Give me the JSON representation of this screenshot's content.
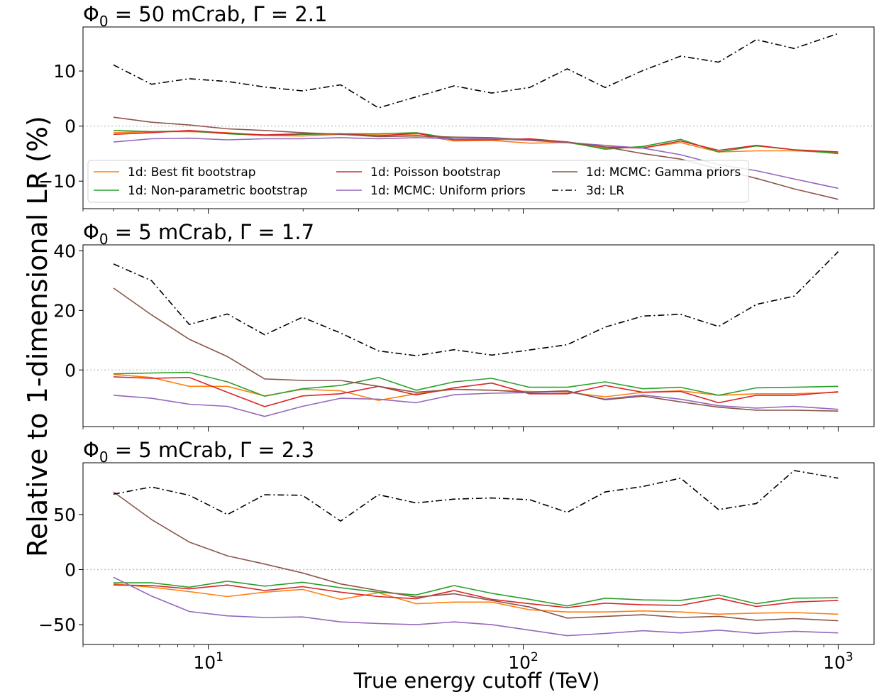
{
  "figure": {
    "ylabel": "Relative to 1-dimensional LR (%)",
    "xlabel": "True energy cutoff (TeV)",
    "xticks": [
      {
        "value": 10,
        "base": "10",
        "exp": "1"
      },
      {
        "value": 100,
        "base": "10",
        "exp": "2"
      },
      {
        "value": 1000,
        "base": "10",
        "exp": "3"
      }
    ]
  },
  "legend": {
    "placement": "bottom of first panel",
    "entries": [
      {
        "label": "1d: Best fit bootstrap",
        "color": "#ff7f0e",
        "dash": "solid"
      },
      {
        "label": "1d: Poisson bootstrap",
        "color": "#d62728",
        "dash": "solid"
      },
      {
        "label": "1d: MCMC: Gamma priors",
        "color": "#8c564b",
        "dash": "solid"
      },
      {
        "label": "1d: Non-parametric bootstrap",
        "color": "#2ca02c",
        "dash": "solid"
      },
      {
        "label": "1d: MCMC: Uniform priors",
        "color": "#9467bd",
        "dash": "solid"
      },
      {
        "label": "3d: LR",
        "color": "#000000",
        "dash": "dashdot"
      }
    ]
  },
  "chart_data": [
    {
      "type": "line",
      "title": {
        "phi": "Φ",
        "sub": "0",
        "rest": " = 50 mCrab, Γ = 2.1"
      },
      "xscale": "log",
      "xlim": [
        4,
        1300
      ],
      "ylim": [
        -15,
        18
      ],
      "yticks": [
        10,
        0,
        -10
      ],
      "zero_line": true,
      "x": [
        5,
        6.6,
        8.7,
        11.5,
        15.1,
        19.9,
        26.3,
        34.7,
        45.7,
        60.3,
        79.4,
        104.7,
        138,
        182,
        240,
        316,
        417,
        550,
        725,
        1000
      ],
      "series": [
        {
          "name": "1d: Best fit bootstrap",
          "values": [
            -1.2,
            -1.0,
            -1.0,
            -1.2,
            -1.7,
            -1.8,
            -1.5,
            -1.6,
            -1.6,
            -2.7,
            -2.6,
            -3.1,
            -3.0,
            -4.0,
            -3.9,
            -3.0,
            -4.7,
            -4.5,
            -4.5,
            -4.8
          ]
        },
        {
          "name": "1d: Non-parametric bootstrap",
          "values": [
            -0.8,
            -1.0,
            -0.9,
            -1.4,
            -1.7,
            -1.5,
            -1.4,
            -1.4,
            -1.2,
            -2.3,
            -2.3,
            -2.4,
            -2.9,
            -4.2,
            -3.7,
            -2.4,
            -4.7,
            -3.6,
            -4.3,
            -5.0
          ]
        },
        {
          "name": "1d: Poisson bootstrap",
          "values": [
            -1.5,
            -1.2,
            -0.8,
            -1.3,
            -1.6,
            -1.4,
            -1.4,
            -1.8,
            -1.3,
            -2.5,
            -2.5,
            -2.3,
            -2.9,
            -3.8,
            -4.0,
            -2.7,
            -4.4,
            -3.5,
            -4.3,
            -4.7
          ]
        },
        {
          "name": "1d: MCMC: Uniform priors",
          "values": [
            -2.9,
            -2.3,
            -2.2,
            -2.5,
            -2.3,
            -2.3,
            -2.1,
            -2.3,
            -2.1,
            -2.3,
            -2.3,
            -2.6,
            -3.0,
            -3.5,
            -4.0,
            -5.2,
            -7.0,
            -8.1,
            -9.6,
            -11.3
          ]
        },
        {
          "name": "1d: MCMC: Gamma priors",
          "values": [
            1.6,
            0.7,
            0.2,
            -0.5,
            -0.8,
            -1.2,
            -1.5,
            -1.9,
            -1.8,
            -2.0,
            -2.1,
            -2.5,
            -2.9,
            -3.8,
            -5.0,
            -6.0,
            -7.8,
            -9.5,
            -11.4,
            -13.3
          ]
        },
        {
          "name": "3d: LR",
          "values": [
            11.1,
            7.6,
            8.6,
            8.1,
            7.1,
            6.4,
            7.5,
            3.3,
            5.3,
            7.3,
            6.0,
            7.0,
            10.4,
            7.0,
            10.1,
            12.7,
            11.6,
            15.7,
            14.1,
            16.8
          ]
        }
      ]
    },
    {
      "type": "line",
      "title": {
        "phi": "Φ",
        "sub": "0",
        "rest": " = 5 mCrab, Γ = 1.7"
      },
      "xscale": "log",
      "xlim": [
        4,
        1300
      ],
      "ylim": [
        -19,
        42
      ],
      "yticks": [
        40,
        20,
        0
      ],
      "zero_line": true,
      "x": [
        5,
        6.6,
        8.7,
        11.5,
        15.1,
        19.9,
        26.3,
        34.7,
        45.7,
        60.3,
        79.4,
        104.7,
        138,
        182,
        240,
        316,
        417,
        550,
        725,
        1000
      ],
      "series": [
        {
          "name": "1d: Best fit bootstrap",
          "values": [
            -1.5,
            -2.5,
            -5.5,
            -5.5,
            -8.7,
            -6.5,
            -7.0,
            -10.2,
            -8.0,
            -6.5,
            -6.8,
            -7.2,
            -7.5,
            -9.0,
            -7.5,
            -7.0,
            -8.5,
            -8.0,
            -8.0,
            -7.5
          ]
        },
        {
          "name": "1d: Non-parametric bootstrap",
          "values": [
            -1.3,
            -1.0,
            -0.8,
            -4.0,
            -8.8,
            -6.3,
            -5.2,
            -2.5,
            -6.8,
            -4.0,
            -2.8,
            -5.8,
            -5.8,
            -4.0,
            -6.3,
            -5.8,
            -8.5,
            -6.0,
            -5.8,
            -5.5
          ]
        },
        {
          "name": "1d: Poisson bootstrap",
          "values": [
            -2.3,
            -2.8,
            -2.5,
            -7.5,
            -12.3,
            -8.7,
            -8.0,
            -5.5,
            -8.4,
            -6.0,
            -4.4,
            -8.0,
            -8.0,
            -5.2,
            -7.5,
            -7.2,
            -11.0,
            -8.5,
            -8.5,
            -7.3
          ]
        },
        {
          "name": "1d: MCMC: Uniform priors",
          "values": [
            -8.5,
            -9.5,
            -11.5,
            -12.2,
            -15.6,
            -12.2,
            -9.5,
            -9.8,
            -11.0,
            -8.3,
            -7.8,
            -7.6,
            -7.2,
            -9.8,
            -8.4,
            -9.8,
            -12.0,
            -12.8,
            -12.2,
            -13.2
          ]
        },
        {
          "name": "1d: MCMC: Gamma priors",
          "values": [
            27.5,
            18.5,
            10.3,
            4.5,
            -3.0,
            -3.5,
            -3.5,
            -5.5,
            -7.5,
            -6.5,
            -6.8,
            -7.5,
            -7.0,
            -10.0,
            -8.8,
            -10.7,
            -12.5,
            -13.5,
            -13.5,
            -13.8
          ]
        },
        {
          "name": "3d: LR",
          "values": [
            35.6,
            30.0,
            15.3,
            18.8,
            11.8,
            17.7,
            12.4,
            6.4,
            4.8,
            6.8,
            5.0,
            6.7,
            8.5,
            14.4,
            18.1,
            18.7,
            14.6,
            22.0,
            24.8,
            39.7
          ]
        }
      ]
    },
    {
      "type": "line",
      "title": {
        "phi": "Φ",
        "sub": "0",
        "rest": " = 5 mCrab, Γ = 2.3"
      },
      "xscale": "log",
      "xlim": [
        4,
        1300
      ],
      "ylim": [
        -68,
        97
      ],
      "yticks": [
        50,
        0,
        -50
      ],
      "zero_line": true,
      "x": [
        5,
        6.6,
        8.7,
        11.5,
        15.1,
        19.9,
        26.3,
        34.7,
        45.7,
        60.3,
        79.4,
        104.7,
        138,
        182,
        240,
        316,
        417,
        550,
        725,
        1000
      ],
      "series": [
        {
          "name": "1d: Best fit bootstrap",
          "values": [
            -13.0,
            -16.0,
            -20.0,
            -24.5,
            -20.5,
            -18.0,
            -27.0,
            -21.0,
            -31.0,
            -29.5,
            -29.5,
            -36.5,
            -38.5,
            -38.5,
            -37.5,
            -38.5,
            -40.5,
            -39.5,
            -39.0,
            -40.5
          ]
        },
        {
          "name": "1d: Non-parametric bootstrap",
          "values": [
            -12.0,
            -12.0,
            -16.0,
            -10.5,
            -15.0,
            -11.5,
            -16.5,
            -20.5,
            -23.0,
            -14.5,
            -21.5,
            -27.0,
            -33.0,
            -26.0,
            -27.5,
            -28.0,
            -23.0,
            -31.0,
            -26.0,
            -25.5
          ]
        },
        {
          "name": "1d: Poisson bootstrap",
          "values": [
            -14.0,
            -14.5,
            -17.5,
            -14.0,
            -19.0,
            -15.5,
            -20.5,
            -24.5,
            -26.5,
            -19.0,
            -27.0,
            -31.0,
            -34.5,
            -30.5,
            -32.0,
            -32.5,
            -26.0,
            -33.5,
            -29.5,
            -28.0
          ]
        },
        {
          "name": "1d: MCMC: Uniform priors",
          "values": [
            -7.0,
            -24.0,
            -38.0,
            -42.0,
            -43.5,
            -43.0,
            -47.5,
            -49.0,
            -50.0,
            -47.5,
            -50.0,
            -55.0,
            -60.0,
            -58.0,
            -55.5,
            -57.5,
            -55.0,
            -58.0,
            -56.0,
            -57.5
          ]
        },
        {
          "name": "1d: MCMC: Gamma priors",
          "values": [
            70.5,
            45.5,
            25.0,
            12.5,
            5.0,
            -3.0,
            -13.0,
            -19.0,
            -25.0,
            -22.0,
            -28.0,
            -34.0,
            -44.0,
            -42.5,
            -41.0,
            -43.5,
            -42.5,
            -46.0,
            -44.5,
            -46.5
          ]
        },
        {
          "name": "3d: LR",
          "values": [
            68.5,
            75.0,
            67.5,
            50.0,
            68.0,
            67.5,
            44.0,
            68.0,
            60.5,
            64.0,
            65.0,
            63.5,
            52.0,
            70.5,
            75.5,
            83.0,
            54.5,
            60.0,
            90.0,
            83.0
          ]
        }
      ]
    }
  ]
}
